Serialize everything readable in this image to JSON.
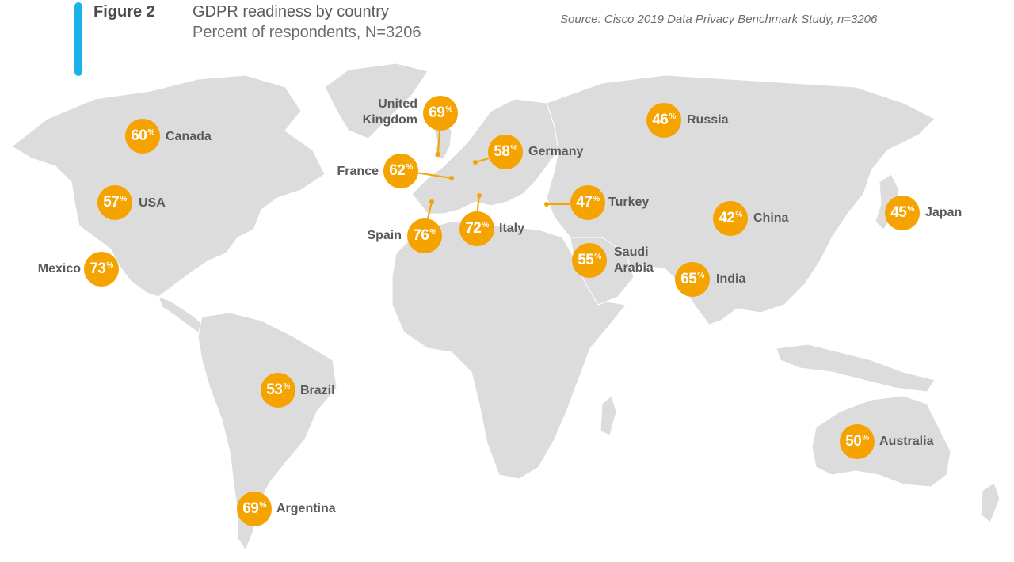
{
  "header": {
    "figure_label": "Figure 2",
    "title": "GDPR readiness by country",
    "subtitle": "Percent of respondents, N=3206",
    "source": "Source: Cisco 2019 Data Privacy Benchmark Study, n=3206"
  },
  "colors": {
    "accent_bar": "#1ab2e8",
    "marker": "#f5a300",
    "land": "#dcdcdc",
    "label_text": "#5a5a5a"
  },
  "countries": [
    {
      "name": "Canada",
      "value": "60"
    },
    {
      "name": "USA",
      "value": "57"
    },
    {
      "name": "Mexico",
      "value": "73"
    },
    {
      "name": "Brazil",
      "value": "53"
    },
    {
      "name": "Argentina",
      "value": "69"
    },
    {
      "name": "United Kingdom",
      "value": "69"
    },
    {
      "name": "France",
      "value": "62"
    },
    {
      "name": "Germany",
      "value": "58"
    },
    {
      "name": "Spain",
      "value": "76"
    },
    {
      "name": "Italy",
      "value": "72"
    },
    {
      "name": "Turkey",
      "value": "47"
    },
    {
      "name": "Russia",
      "value": "46"
    },
    {
      "name": "China",
      "value": "42"
    },
    {
      "name": "Japan",
      "value": "45"
    },
    {
      "name": "Saudi Arabia",
      "value": "55"
    },
    {
      "name": "India",
      "value": "65"
    },
    {
      "name": "Australia",
      "value": "50"
    }
  ],
  "percent_symbol": "%"
}
